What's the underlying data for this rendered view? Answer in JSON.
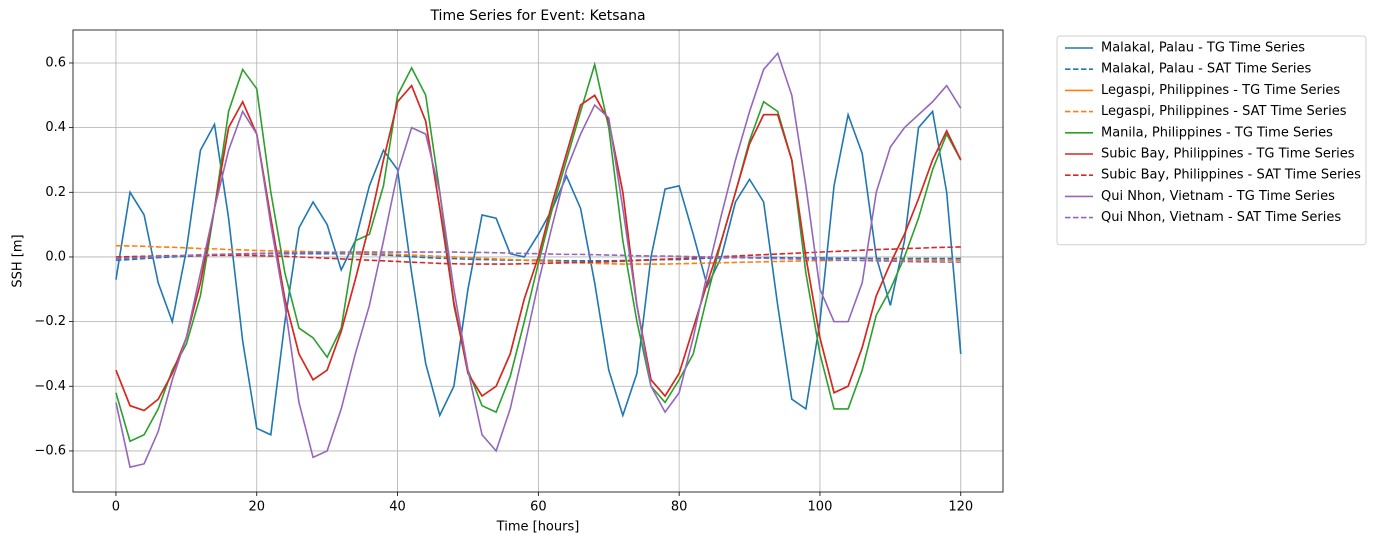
{
  "chart_data": {
    "type": "line",
    "title": "Time Series for Event: Ketsana",
    "xlabel": "Time [hours]",
    "ylabel": "SSH [m]",
    "x": [
      0,
      2,
      4,
      6,
      8,
      10,
      12,
      14,
      16,
      18,
      20,
      22,
      24,
      26,
      28,
      30,
      32,
      34,
      36,
      38,
      40,
      42,
      44,
      46,
      48,
      50,
      52,
      54,
      56,
      58,
      60,
      62,
      64,
      66,
      68,
      70,
      72,
      74,
      76,
      78,
      80,
      82,
      84,
      86,
      88,
      90,
      92,
      94,
      96,
      98,
      100,
      102,
      104,
      106,
      108,
      110,
      112,
      114,
      116,
      118,
      120
    ],
    "xlim": [
      -6.1,
      126
    ],
    "xticks": [
      0,
      20,
      40,
      60,
      80,
      100,
      120
    ],
    "ylim": [
      -0.727,
      0.702
    ],
    "yticks": [
      {
        "value": -0.6,
        "label": "−0.6"
      },
      {
        "value": -0.4,
        "label": "−0.4"
      },
      {
        "value": -0.2,
        "label": "−0.2"
      },
      {
        "value": 0,
        "label": "0.0"
      },
      {
        "value": 0.2,
        "label": "0.2"
      },
      {
        "value": 0.4,
        "label": "0.4"
      },
      {
        "value": 0.6,
        "label": "0.6"
      }
    ],
    "grid": true,
    "legend": "outside-right",
    "series": [
      {
        "name": "Malakal, Palau - TG Time Series",
        "color": "#1f77b4",
        "linestyle": "solid",
        "values": [
          -0.07,
          0.2,
          0.13,
          -0.08,
          -0.2,
          0.02,
          0.33,
          0.41,
          0.12,
          -0.26,
          -0.53,
          -0.55,
          -0.2,
          0.09,
          0.17,
          0.1,
          -0.04,
          0.05,
          0.22,
          0.33,
          0.27,
          -0.05,
          -0.33,
          -0.49,
          -0.4,
          -0.1,
          0.13,
          0.12,
          0.01,
          0,
          0.07,
          0.15,
          0.25,
          0.15,
          -0.08,
          -0.35,
          -0.49,
          -0.36,
          0,
          0.21,
          0.22,
          0.07,
          -0.09,
          0,
          0.17,
          0.24,
          0.17,
          -0.15,
          -0.44,
          -0.47,
          -0.2,
          0.22,
          0.44,
          0.32,
          0,
          -0.15,
          0.05,
          0.4,
          0.45,
          0.2,
          -0.3
        ]
      },
      {
        "name": "Malakal, Palau - SAT Time Series",
        "color": "#1f77b4",
        "linestyle": "dashed",
        "values": [
          -0.01,
          -0.008,
          -0.005,
          -0.002,
          0,
          0.002,
          0.004,
          0.006,
          0.008,
          0.009,
          0.01,
          0.01,
          0.01,
          0.01,
          0.01,
          0.01,
          0.01,
          0.01,
          0.008,
          0.006,
          0.004,
          0.001,
          -0.002,
          -0.004,
          -0.005,
          -0.007,
          -0.008,
          -0.009,
          -0.01,
          -0.01,
          -0.01,
          -0.011,
          -0.012,
          -0.012,
          -0.012,
          -0.012,
          -0.011,
          -0.01,
          -0.009,
          -0.008,
          -0.008,
          -0.006,
          -0.004,
          -0.003,
          -0.002,
          -0.002,
          -0.002,
          -0.002,
          -0.003,
          -0.003,
          -0.003,
          -0.004,
          -0.004,
          -0.004,
          -0.005,
          -0.005,
          -0.005,
          -0.005,
          -0.005,
          -0.005,
          -0.005
        ]
      },
      {
        "name": "Legaspi, Philippines - TG Time Series",
        "color": "#ff7f0e",
        "linestyle": "solid",
        "values": [
          -0.35,
          -0.46,
          -0.475,
          -0.44,
          -0.36,
          -0.25,
          -0.08,
          0.15,
          0.4,
          0.48,
          0.38,
          0.12,
          -0.13,
          -0.3,
          -0.38,
          -0.35,
          -0.23,
          -0.07,
          0.1,
          0.3,
          0.48,
          0.53,
          0.42,
          0.15,
          -0.14,
          -0.36,
          -0.43,
          -0.4,
          -0.3,
          -0.13,
          0,
          0.17,
          0.32,
          0.47,
          0.5,
          0.42,
          0.2,
          -0.15,
          -0.38,
          -0.43,
          -0.36,
          -0.22,
          -0.08,
          0.05,
          0.2,
          0.35,
          0.44,
          0.44,
          0.3,
          0,
          -0.25,
          -0.42,
          -0.4,
          -0.28,
          -0.12,
          -0.02,
          0.07,
          0.18,
          0.3,
          0.39,
          0.3
        ]
      },
      {
        "name": "Legaspi, Philippines - SAT Time Series",
        "color": "#ff7f0e",
        "linestyle": "dashed",
        "values": [
          0.035,
          0.034,
          0.033,
          0.031,
          0.03,
          0.028,
          0.026,
          0.025,
          0.023,
          0.022,
          0.02,
          0.019,
          0.018,
          0.017,
          0.016,
          0.015,
          0.013,
          0.012,
          0.011,
          0.01,
          0.008,
          0.006,
          0.004,
          0.002,
          0,
          -0.002,
          -0.004,
          -0.006,
          -0.008,
          -0.01,
          -0.012,
          -0.014,
          -0.016,
          -0.018,
          -0.02,
          -0.021,
          -0.022,
          -0.022,
          -0.022,
          -0.022,
          -0.021,
          -0.02,
          -0.019,
          -0.018,
          -0.017,
          -0.016,
          -0.015,
          -0.014,
          -0.013,
          -0.012,
          -0.011,
          -0.011,
          -0.01,
          -0.01,
          -0.01,
          -0.01,
          -0.01,
          -0.01,
          -0.01,
          -0.01,
          -0.01
        ]
      },
      {
        "name": "Manila, Philippines - TG Time Series",
        "color": "#2ca02c",
        "linestyle": "solid",
        "values": [
          -0.42,
          -0.57,
          -0.55,
          -0.47,
          -0.35,
          -0.27,
          -0.12,
          0.15,
          0.45,
          0.58,
          0.52,
          0.2,
          -0.05,
          -0.22,
          -0.25,
          -0.31,
          -0.22,
          0.05,
          0.07,
          0.22,
          0.5,
          0.585,
          0.5,
          0.2,
          -0.15,
          -0.35,
          -0.46,
          -0.48,
          -0.37,
          -0.2,
          -0.02,
          0.15,
          0.3,
          0.45,
          0.595,
          0.4,
          0.05,
          -0.2,
          -0.4,
          -0.45,
          -0.38,
          -0.3,
          -0.12,
          0.05,
          0.2,
          0.36,
          0.48,
          0.45,
          0.3,
          -0.05,
          -0.3,
          -0.47,
          -0.47,
          -0.35,
          -0.18,
          -0.1,
          0,
          0.12,
          0.27,
          0.38,
          0.3
        ]
      },
      {
        "name": "Subic Bay, Philippines - TG Time Series",
        "color": "#d62728",
        "linestyle": "solid",
        "values": [
          -0.35,
          -0.46,
          -0.475,
          -0.44,
          -0.36,
          -0.25,
          -0.08,
          0.15,
          0.4,
          0.48,
          0.38,
          0.12,
          -0.13,
          -0.3,
          -0.38,
          -0.35,
          -0.23,
          -0.07,
          0.1,
          0.3,
          0.48,
          0.53,
          0.42,
          0.15,
          -0.14,
          -0.36,
          -0.43,
          -0.4,
          -0.3,
          -0.13,
          0,
          0.17,
          0.32,
          0.47,
          0.5,
          0.42,
          0.2,
          -0.15,
          -0.38,
          -0.43,
          -0.36,
          -0.22,
          -0.08,
          0.05,
          0.2,
          0.35,
          0.44,
          0.44,
          0.3,
          0,
          -0.25,
          -0.42,
          -0.4,
          -0.28,
          -0.12,
          -0.02,
          0.07,
          0.18,
          0.3,
          0.39,
          0.3
        ]
      },
      {
        "name": "Subic Bay, Philippines - SAT Time Series",
        "color": "#d62728",
        "linestyle": "dashed",
        "values": [
          0,
          0.001,
          0.002,
          0.003,
          0.004,
          0.004,
          0.005,
          0.005,
          0.005,
          0.005,
          0.004,
          0.003,
          0.002,
          0,
          -0.002,
          -0.004,
          -0.006,
          -0.008,
          -0.01,
          -0.012,
          -0.014,
          -0.016,
          -0.018,
          -0.02,
          -0.021,
          -0.022,
          -0.022,
          -0.022,
          -0.022,
          -0.021,
          -0.02,
          -0.019,
          -0.018,
          -0.017,
          -0.016,
          -0.015,
          -0.013,
          -0.011,
          -0.009,
          -0.007,
          -0.005,
          -0.003,
          -0.001,
          0.001,
          0.003,
          0.005,
          0.007,
          0.009,
          0.011,
          0.013,
          0.015,
          0.017,
          0.019,
          0.021,
          0.023,
          0.024,
          0.026,
          0.027,
          0.029,
          0.03,
          0.031
        ]
      },
      {
        "name": "Qui Nhon, Vietnam - TG Time Series",
        "color": "#9467bd",
        "linestyle": "solid",
        "values": [
          -0.45,
          -0.65,
          -0.64,
          -0.54,
          -0.38,
          -0.25,
          -0.05,
          0.15,
          0.33,
          0.45,
          0.38,
          0.1,
          -0.15,
          -0.45,
          -0.62,
          -0.6,
          -0.47,
          -0.3,
          -0.15,
          0.05,
          0.26,
          0.4,
          0.38,
          0.2,
          -0.1,
          -0.35,
          -0.55,
          -0.6,
          -0.47,
          -0.28,
          -0.08,
          0.1,
          0.27,
          0.38,
          0.47,
          0.43,
          0.15,
          -0.15,
          -0.4,
          -0.48,
          -0.42,
          -0.25,
          -0.05,
          0.13,
          0.3,
          0.45,
          0.58,
          0.63,
          0.5,
          0.22,
          -0.1,
          -0.2,
          -0.2,
          -0.08,
          0.2,
          0.34,
          0.4,
          0.44,
          0.48,
          0.53,
          0.46
        ]
      },
      {
        "name": "Qui Nhon, Vietnam - SAT Time Series",
        "color": "#9467bd",
        "linestyle": "dashed",
        "values": [
          -0.005,
          -0.003,
          -0.001,
          0.001,
          0.003,
          0.005,
          0.007,
          0.008,
          0.009,
          0.01,
          0.011,
          0.012,
          0.013,
          0.013,
          0.014,
          0.014,
          0.015,
          0.015,
          0.015,
          0.015,
          0.015,
          0.015,
          0.015,
          0.015,
          0.015,
          0.014,
          0.014,
          0.013,
          0.012,
          0.011,
          0.01,
          0.009,
          0.008,
          0.008,
          0.007,
          0.006,
          0.005,
          0.004,
          0.003,
          0.003,
          0.002,
          0.001,
          0,
          -0.001,
          -0.002,
          -0.003,
          -0.004,
          -0.005,
          -0.006,
          -0.007,
          -0.008,
          -0.009,
          -0.01,
          -0.011,
          -0.012,
          -0.013,
          -0.014,
          -0.015,
          -0.015,
          -0.016,
          -0.016
        ]
      }
    ]
  }
}
